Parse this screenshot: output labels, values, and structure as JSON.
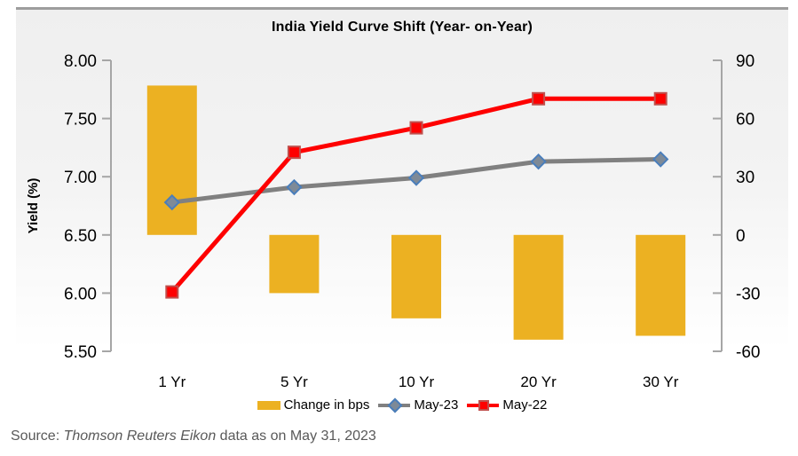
{
  "title": "India Yield Curve Shift (Year- on-Year)",
  "source": {
    "prefix": "Source: ",
    "italic": "Thomson Reuters Eikon",
    "suffix": " data as on May 31, 2023"
  },
  "legend": [
    {
      "label": "Change in bps",
      "swatch": "bar-swatch"
    },
    {
      "label": "May-23",
      "swatch": "line-diamond-swatch"
    },
    {
      "label": "May-22",
      "swatch": "line-square-swatch"
    }
  ],
  "colors": {
    "bar_yellow": "#ECB122",
    "line_gray": "#808080",
    "diamond_fill": "#7E8A97",
    "diamond_border": "#4A7EBB",
    "line_red": "#FE0000",
    "square_fill": "#FE0000",
    "square_border": "#C0504D",
    "axis_gray": "#A6A6A6",
    "source_text": "#595959",
    "panel_border": "#9D9D9D"
  },
  "chart_data": {
    "type": "bar",
    "subtype": "combo-bar-line",
    "title": "India Yield Curve Shift (Year- on-Year)",
    "categories": [
      "1 Yr",
      "5 Yr",
      "10 Yr",
      "20 Yr",
      "30 Yr"
    ],
    "series": [
      {
        "name": "Change in bps",
        "type": "bar",
        "axis": "right",
        "values": [
          77,
          -30,
          -43,
          -54,
          -52
        ],
        "color": "#ECB122"
      },
      {
        "name": "May-23",
        "type": "line",
        "axis": "left",
        "marker": "diamond",
        "values": [
          6.78,
          6.91,
          6.99,
          7.13,
          7.15
        ],
        "color": "#808080",
        "marker_fill": "#7E8A97",
        "marker_border": "#4A7EBB"
      },
      {
        "name": "May-22",
        "type": "line",
        "axis": "left",
        "marker": "square",
        "values": [
          6.01,
          7.21,
          7.42,
          7.67,
          7.67
        ],
        "color": "#FE0000",
        "marker_fill": "#FE0000",
        "marker_border": "#C0504D"
      }
    ],
    "left_axis": {
      "label": "Yield (%)",
      "min": 5.5,
      "max": 8.0,
      "ticks": [
        "8.00",
        "7.50",
        "7.00",
        "6.50",
        "6.00",
        "5.50"
      ]
    },
    "right_axis": {
      "label": "",
      "min": -60,
      "max": 90,
      "ticks": [
        "90",
        "60",
        "30",
        "0",
        "-30",
        "-60"
      ]
    },
    "grid": false,
    "legend_position": "bottom"
  }
}
